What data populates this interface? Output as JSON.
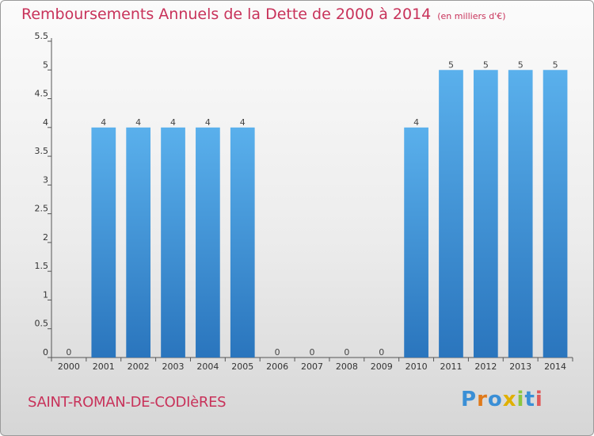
{
  "chart_data": {
    "type": "bar",
    "title": "Remboursements Annuels de la Dette de 2000 à 2014",
    "unit": "(en milliers d'€)",
    "categories": [
      "2000",
      "2001",
      "2002",
      "2003",
      "2004",
      "2005",
      "2006",
      "2007",
      "2008",
      "2009",
      "2010",
      "2011",
      "2012",
      "2013",
      "2014"
    ],
    "values": [
      0,
      4,
      4,
      4,
      4,
      4,
      0,
      0,
      0,
      0,
      4,
      5,
      5,
      5,
      5
    ],
    "data_labels": [
      "0",
      "4",
      "4",
      "4",
      "4",
      "4",
      "0",
      "0",
      "0",
      "0",
      "4",
      "5",
      "5",
      "5",
      "5"
    ],
    "ylim": [
      0,
      5.5
    ],
    "y_ticks": [
      0,
      0.5,
      1,
      1.5,
      2,
      2.5,
      3,
      3.5,
      4,
      4.5,
      5,
      5.5
    ],
    "y_tick_labels": [
      "0",
      "0.5",
      "1",
      "1.5",
      "2",
      "2.5",
      "3",
      "3.5",
      "4",
      "4.5",
      "5",
      "5.5"
    ],
    "xlabel": "",
    "ylabel": "",
    "grid": false,
    "bar_color": "#3a8fd6",
    "bar_color_light": "#5ab0ec",
    "bar_color_dark": "#2a75bd"
  },
  "footer": {
    "commune": "SAINT-ROMAN-DE-CODIèRES"
  },
  "logo": {
    "text": "Proxiti",
    "letter_colors": [
      "#3a8fd6",
      "#e07a1a",
      "#3a8fd6",
      "#e0b000",
      "#8cc63f",
      "#3a8fd6",
      "#e05a5a"
    ]
  },
  "colors": {
    "title": "#c8325a",
    "axis": "#555555"
  }
}
